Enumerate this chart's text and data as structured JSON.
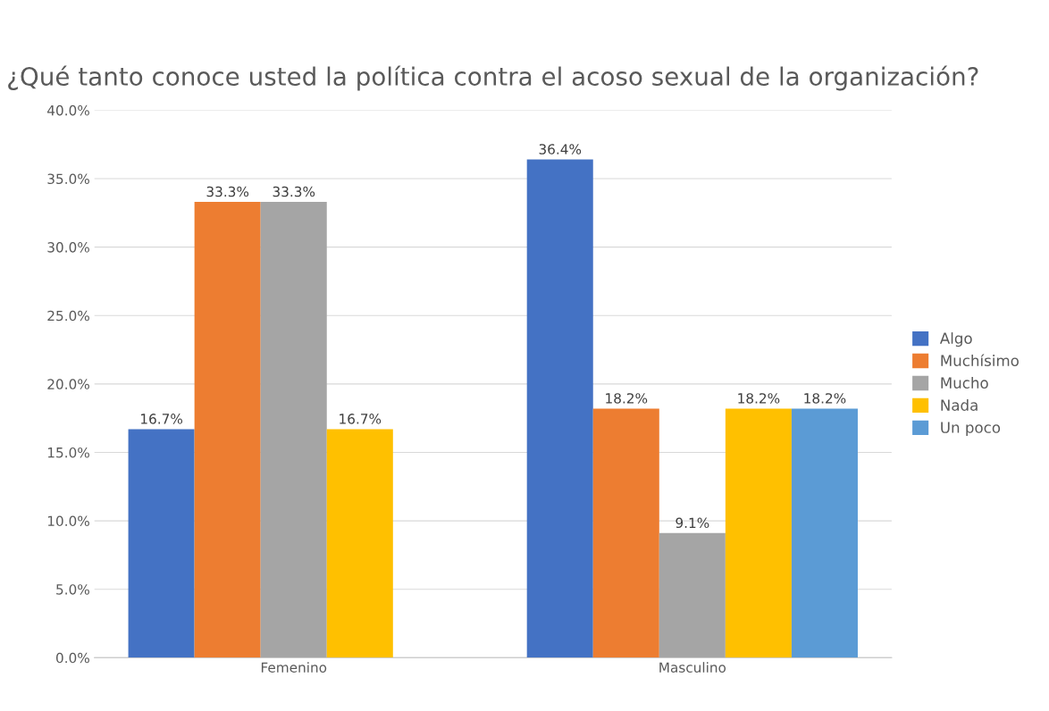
{
  "chart_data": {
    "type": "bar",
    "title": "¿Qué tanto conoce usted la política contra el acoso sexual de la organización?",
    "categories": [
      "Femenino",
      "Masculino"
    ],
    "series": [
      {
        "name": "Algo",
        "color": "#4472c4",
        "values": [
          16.7,
          36.4
        ],
        "value_labels": [
          "16.7%",
          "36.4%"
        ]
      },
      {
        "name": "Muchísimo",
        "color": "#ed7d31",
        "values": [
          33.3,
          18.2
        ],
        "value_labels": [
          "33.3%",
          "18.2%"
        ]
      },
      {
        "name": "Mucho",
        "color": "#a5a5a5",
        "values": [
          33.3,
          9.1
        ],
        "value_labels": [
          "33.3%",
          "9.1%"
        ]
      },
      {
        "name": "Nada",
        "color": "#ffc000",
        "values": [
          16.7,
          18.2
        ],
        "value_labels": [
          "16.7%",
          "18.2%"
        ]
      },
      {
        "name": "Un poco",
        "color": "#5b9bd5",
        "values": [
          null,
          18.2
        ],
        "value_labels": [
          null,
          "18.2%"
        ]
      }
    ],
    "ylim": [
      0,
      40
    ],
    "yticks": [
      {
        "value": 0,
        "label": "0.0%"
      },
      {
        "value": 5,
        "label": "5.0%"
      },
      {
        "value": 10,
        "label": "10.0%"
      },
      {
        "value": 15,
        "label": "15.0%"
      },
      {
        "value": 20,
        "label": "20.0%"
      },
      {
        "value": 25,
        "label": "25.0%"
      },
      {
        "value": 30,
        "label": "30.0%"
      },
      {
        "value": 35,
        "label": "35.0%"
      },
      {
        "value": 40,
        "label": "40.0%"
      }
    ],
    "grid": "y",
    "legend": "right"
  }
}
